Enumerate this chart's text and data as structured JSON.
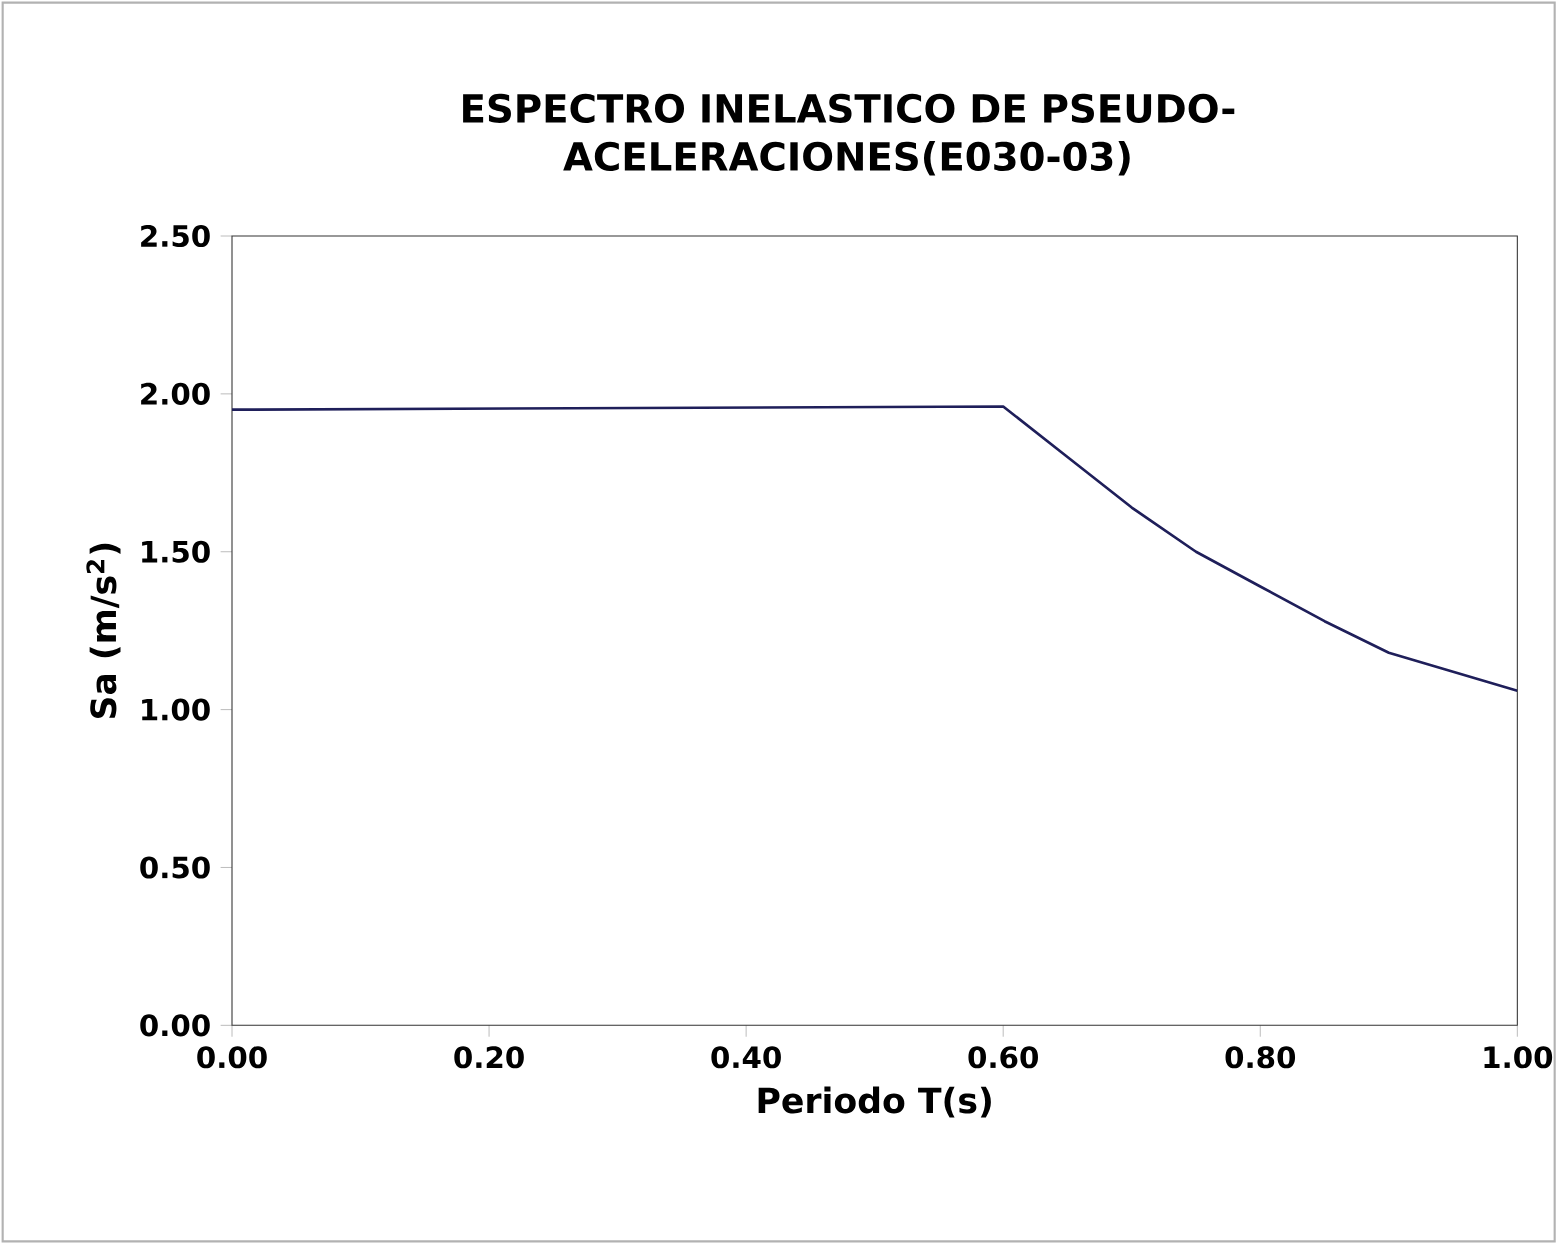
{
  "chart_data": {
    "type": "line",
    "title": "ESPECTRO INELASTICO DE PSEUDO-ACELERACIONES(E030-03)",
    "xlabel": "Periodo T(s)",
    "ylabel": "Sa (m/s$^{2}$)",
    "x": [
      0.0,
      0.6,
      0.65,
      0.7,
      0.75,
      0.8,
      0.85,
      0.9,
      0.95,
      1.0
    ],
    "series": [
      {
        "color": "#1f1f5a",
        "values": [
          1.95,
          1.96,
          1.8,
          1.64,
          1.5,
          1.39,
          1.28,
          1.18,
          1.12,
          1.06
        ]
      }
    ],
    "xlim": [
      0,
      1
    ],
    "ylim": [
      0,
      2.5
    ],
    "xticks": [
      {
        "value": 0,
        "label": "0.00"
      },
      {
        "value": 0.2,
        "label": "0.20"
      },
      {
        "value": 0.4,
        "label": "0.40"
      },
      {
        "value": 0.6,
        "label": "0.60"
      },
      {
        "value": 0.8,
        "label": "0.80"
      },
      {
        "value": 1,
        "label": "1.00"
      }
    ],
    "yticks": [
      {
        "value": 0,
        "label": "0.00"
      },
      {
        "value": 0.5,
        "label": "0.50"
      },
      {
        "value": 1,
        "label": "1.00"
      },
      {
        "value": 1.5,
        "label": "1.50"
      },
      {
        "value": 2,
        "label": "2.00"
      },
      {
        "value": 2.5,
        "label": "2.50"
      }
    ],
    "grid": false,
    "marker": "none",
    "line_style": "solid"
  }
}
